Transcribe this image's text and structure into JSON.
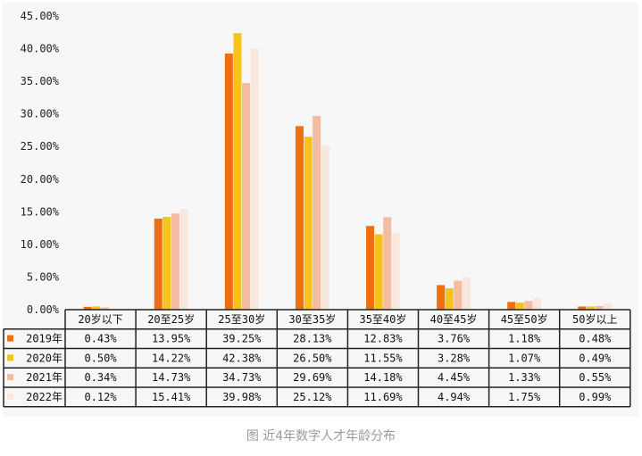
{
  "chart_data": {
    "type": "bar",
    "categories": [
      "20岁以下",
      "20至25岁",
      "25至30岁",
      "30至35岁",
      "35至40岁",
      "40至45岁",
      "45至50岁",
      "50岁以上"
    ],
    "series": [
      {
        "name": "2019年",
        "color": "#ee6f0f",
        "values": [
          0.43,
          13.95,
          39.25,
          28.13,
          12.83,
          3.76,
          1.18,
          0.48
        ],
        "labels": [
          "0.43%",
          "13.95%",
          "39.25%",
          "28.13%",
          "12.83%",
          "3.76%",
          "1.18%",
          "0.48%"
        ]
      },
      {
        "name": "2020年",
        "color": "#f6c21b",
        "values": [
          0.5,
          14.22,
          42.38,
          26.5,
          11.55,
          3.28,
          1.07,
          0.49
        ],
        "labels": [
          "0.50%",
          "14.22%",
          "42.38%",
          "26.50%",
          "11.55%",
          "3.28%",
          "1.07%",
          "0.49%"
        ]
      },
      {
        "name": "2021年",
        "color": "#f4bca1",
        "values": [
          0.34,
          14.73,
          34.73,
          29.69,
          14.18,
          4.45,
          1.33,
          0.55
        ],
        "labels": [
          "0.34%",
          "14.73%",
          "34.73%",
          "29.69%",
          "14.18%",
          "4.45%",
          "1.33%",
          "0.55%"
        ]
      },
      {
        "name": "2022年",
        "color": "#f7e7dc",
        "values": [
          0.12,
          15.41,
          39.98,
          25.12,
          11.69,
          4.94,
          1.75,
          0.99
        ],
        "labels": [
          "0.12%",
          "15.41%",
          "39.98%",
          "25.12%",
          "11.69%",
          "4.94%",
          "1.75%",
          "0.99%"
        ]
      }
    ],
    "yticks": [
      "0.00%",
      "5.00%",
      "10.00%",
      "15.00%",
      "20.00%",
      "25.00%",
      "30.00%",
      "35.00%",
      "40.00%",
      "45.00%"
    ],
    "ylim": [
      0,
      45
    ],
    "grid": false,
    "legend": "data-table"
  },
  "caption": "图 近4年数字人才年龄分布"
}
